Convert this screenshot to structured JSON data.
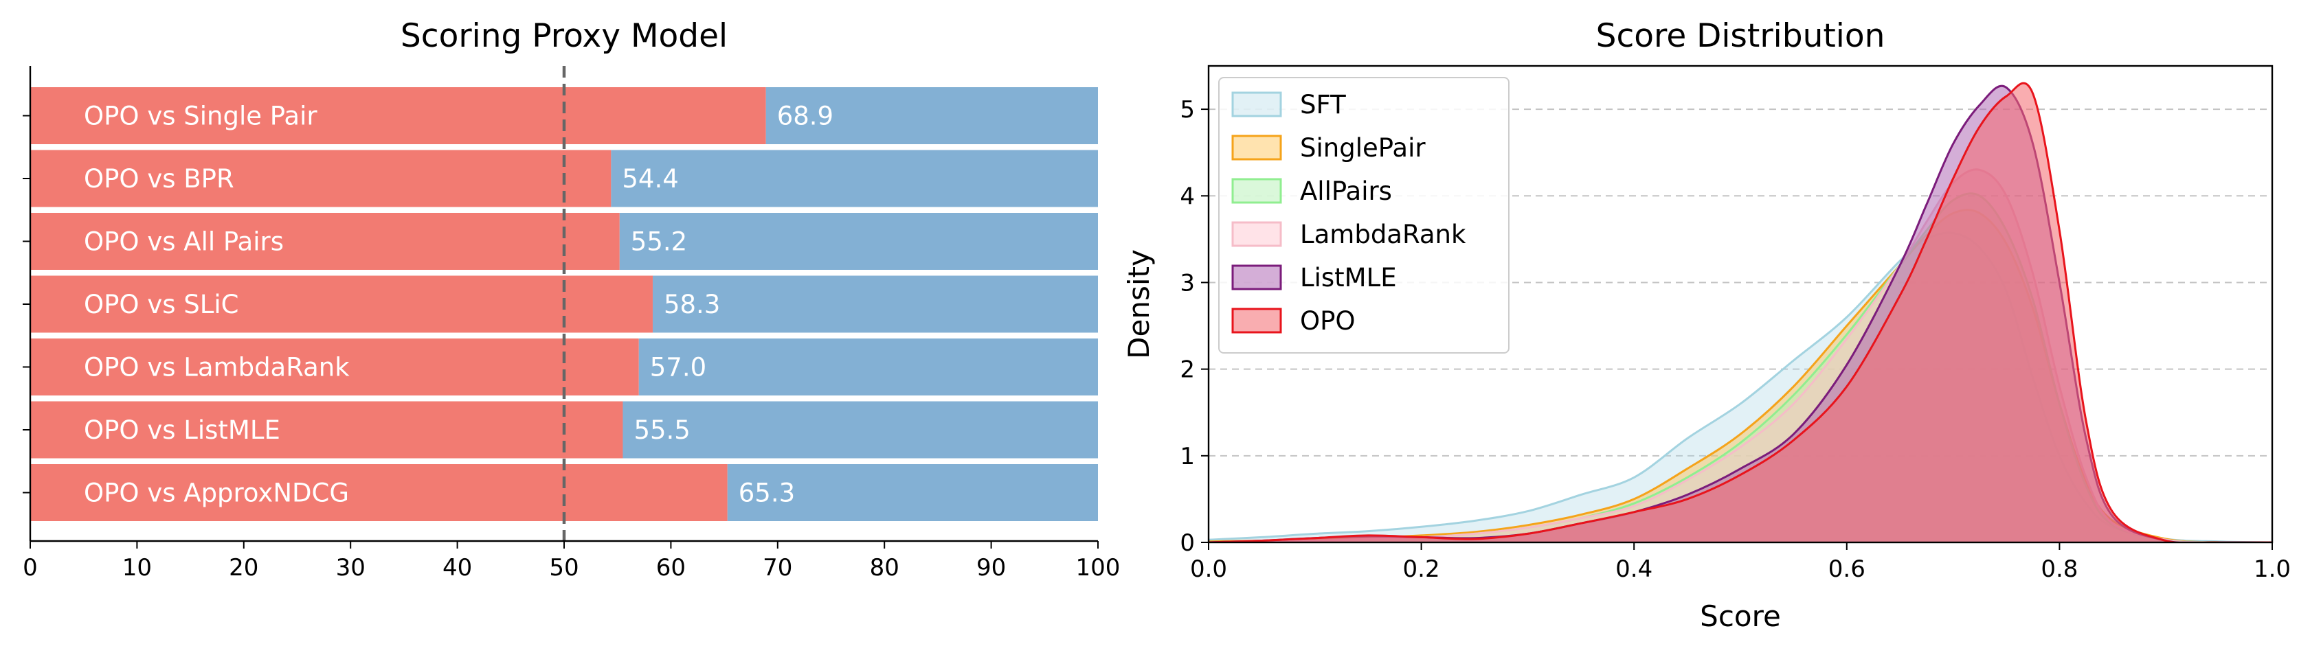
{
  "chart_data": [
    {
      "type": "bar",
      "orientation": "horizontal",
      "stacked": true,
      "title": "Scoring Proxy Model",
      "xlabel": "",
      "ylabel": "",
      "xlim": [
        0,
        100
      ],
      "xticks": [
        "0",
        "10",
        "20",
        "30",
        "40",
        "50",
        "60",
        "70",
        "80",
        "90",
        "100"
      ],
      "reference_line": {
        "x": 50,
        "style": "dashed"
      },
      "categories": [
        "OPO vs Single Pair",
        "OPO vs BPR",
        "OPO vs All Pairs",
        "OPO vs SLiC",
        "OPO vs LambdaRank",
        "OPO vs ListMLE",
        "OPO vs ApproxNDCG"
      ],
      "values": [
        68.9,
        54.4,
        55.2,
        58.3,
        57.0,
        55.5,
        65.3
      ],
      "value_labels": [
        "68.9",
        "54.4",
        "55.2",
        "58.3",
        "57.0",
        "55.5",
        "65.3"
      ],
      "total": 100,
      "colors": {
        "win": "#f27b72",
        "rest": "#83b0d4",
        "refline": "#666666"
      }
    },
    {
      "type": "area",
      "subtype": "kde",
      "title": "Score Distribution",
      "xlabel": "Score",
      "ylabel": "Density",
      "xlim": [
        0.0,
        1.0
      ],
      "ylim": [
        0,
        5.5
      ],
      "xticks": [
        "0.0",
        "0.2",
        "0.4",
        "0.6",
        "0.8",
        "1.0"
      ],
      "yticks": [
        "0",
        "1",
        "2",
        "3",
        "4",
        "5"
      ],
      "grid": "horizontal-dashed",
      "legend_position": "top-left",
      "x": [
        0.0,
        0.05,
        0.1,
        0.15,
        0.2,
        0.25,
        0.3,
        0.35,
        0.4,
        0.45,
        0.5,
        0.55,
        0.6,
        0.65,
        0.675,
        0.7,
        0.725,
        0.75,
        0.775,
        0.8,
        0.825,
        0.85,
        0.9,
        0.95,
        1.0
      ],
      "series": [
        {
          "name": "SFT",
          "edge": "#a3d3e0",
          "fill": "#add8e6",
          "alpha": 0.35,
          "values": [
            0.03,
            0.06,
            0.1,
            0.13,
            0.18,
            0.25,
            0.36,
            0.55,
            0.75,
            1.2,
            1.6,
            2.1,
            2.6,
            3.25,
            3.5,
            3.57,
            3.4,
            2.9,
            1.9,
            1.0,
            0.45,
            0.18,
            0.04,
            0.01,
            0.0
          ]
        },
        {
          "name": "SinglePair",
          "edge": "#f5a31a",
          "fill": "#ffc04d",
          "alpha": 0.45,
          "values": [
            0.01,
            0.02,
            0.03,
            0.05,
            0.08,
            0.12,
            0.2,
            0.32,
            0.5,
            0.85,
            1.25,
            1.8,
            2.5,
            3.2,
            3.55,
            3.8,
            3.8,
            3.45,
            2.7,
            1.6,
            0.7,
            0.25,
            0.04,
            0.0,
            0.0
          ]
        },
        {
          "name": "AllPairs",
          "edge": "#90ee90",
          "fill": "#b5f2b5",
          "alpha": 0.5,
          "values": [
            0.0,
            0.01,
            0.02,
            0.04,
            0.06,
            0.1,
            0.17,
            0.28,
            0.45,
            0.75,
            1.15,
            1.7,
            2.4,
            3.2,
            3.6,
            3.95,
            4.0,
            3.6,
            2.8,
            1.6,
            0.65,
            0.2,
            0.03,
            0.0,
            0.0
          ]
        },
        {
          "name": "LambdaRank",
          "edge": "#f6bcc8",
          "fill": "#ffc0cb",
          "alpha": 0.45,
          "values": [
            0.0,
            0.01,
            0.02,
            0.04,
            0.06,
            0.1,
            0.17,
            0.28,
            0.42,
            0.72,
            1.1,
            1.6,
            2.35,
            3.2,
            3.7,
            4.15,
            4.3,
            4.0,
            3.1,
            1.8,
            0.75,
            0.22,
            0.03,
            0.0,
            0.0
          ]
        },
        {
          "name": "ListMLE",
          "edge": "#7b1c7b",
          "fill": "#a95eb0",
          "alpha": 0.5,
          "values": [
            0.0,
            0.02,
            0.05,
            0.07,
            0.06,
            0.05,
            0.1,
            0.22,
            0.35,
            0.55,
            0.85,
            1.25,
            2.05,
            3.2,
            3.9,
            4.6,
            5.05,
            5.25,
            4.6,
            3.0,
            1.2,
            0.3,
            0.02,
            0.0,
            0.0
          ]
        },
        {
          "name": "OPO",
          "edge": "#e8141c",
          "fill": "#f46a70",
          "alpha": 0.55,
          "values": [
            0.0,
            0.02,
            0.05,
            0.08,
            0.06,
            0.04,
            0.1,
            0.22,
            0.35,
            0.5,
            0.78,
            1.18,
            1.8,
            2.85,
            3.5,
            4.2,
            4.8,
            5.15,
            5.18,
            3.6,
            1.4,
            0.35,
            0.02,
            0.0,
            0.0
          ]
        }
      ]
    }
  ]
}
